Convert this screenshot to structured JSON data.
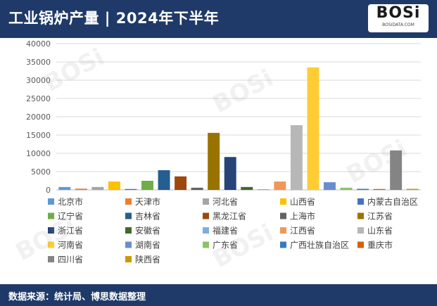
{
  "header": {
    "title": "工业锅炉产量 | 2024年下半年"
  },
  "logo": {
    "main": "BOSi",
    "sub": "BOSIDATA.COM"
  },
  "footer": {
    "source": "数据来源：统计局、博思数据整理"
  },
  "watermark": {
    "text": "BOSi"
  },
  "chart_data": {
    "type": "bar",
    "title": "",
    "xlabel": "",
    "ylabel": "",
    "ylim": [
      0,
      40000
    ],
    "yticks": [
      "0",
      "5000",
      "10000",
      "15000",
      "20000",
      "25000",
      "30000",
      "35000",
      "40000"
    ],
    "grid": true,
    "legend_position": "bottom",
    "series": [
      {
        "name": "北京市",
        "value": 800,
        "color": "#5b9bd5"
      },
      {
        "name": "天津市",
        "value": 350,
        "color": "#ed7d31"
      },
      {
        "name": "河北省",
        "value": 800,
        "color": "#a5a5a5"
      },
      {
        "name": "山西省",
        "value": 2300,
        "color": "#ffc000"
      },
      {
        "name": "内蒙古自治区",
        "value": 250,
        "color": "#4472c4"
      },
      {
        "name": "辽宁省",
        "value": 2500,
        "color": "#70ad47"
      },
      {
        "name": "吉林省",
        "value": 5400,
        "color": "#255e91"
      },
      {
        "name": "黑龙江省",
        "value": 3700,
        "color": "#9e480e"
      },
      {
        "name": "上海市",
        "value": 600,
        "color": "#636363"
      },
      {
        "name": "江苏省",
        "value": 15600,
        "color": "#997300"
      },
      {
        "name": "浙江省",
        "value": 9000,
        "color": "#264478"
      },
      {
        "name": "安徽省",
        "value": 800,
        "color": "#43682b"
      },
      {
        "name": "福建省",
        "value": 200,
        "color": "#7cafdd"
      },
      {
        "name": "江西省",
        "value": 2300,
        "color": "#f1975a"
      },
      {
        "name": "山东省",
        "value": 17700,
        "color": "#b7b7b7"
      },
      {
        "name": "河南省",
        "value": 33500,
        "color": "#ffcd33"
      },
      {
        "name": "湖南省",
        "value": 2100,
        "color": "#698ed0"
      },
      {
        "name": "广东省",
        "value": 600,
        "color": "#8cc168"
      },
      {
        "name": "广西壮族自治区",
        "value": 300,
        "color": "#327dc2"
      },
      {
        "name": "重庆市",
        "value": 250,
        "color": "#d26012"
      },
      {
        "name": "四川省",
        "value": 10800,
        "color": "#848484"
      },
      {
        "name": "陕西省",
        "value": 300,
        "color": "#cc9a00"
      }
    ]
  }
}
